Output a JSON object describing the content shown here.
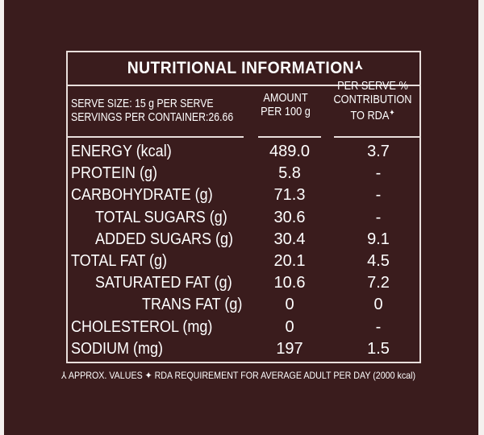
{
  "title": "NUTRITIONAL INFORMATION",
  "title_mark": "⅄",
  "header": {
    "serve_size": "SERVE SIZE: 15 g PER SERVE",
    "servings": "SERVINGS PER CONTAINER:26.66",
    "amount_line1": "AMOUNT",
    "amount_line2": "PER 100 g",
    "rda_line1": "PER SERVE %",
    "rda_line2": "CONTRIBUTION",
    "rda_line3": "TO RDA",
    "rda_mark": "✦"
  },
  "rows": [
    {
      "label": "ENERGY (kcal)",
      "amount": "489.0",
      "rda": "3.7"
    },
    {
      "label": "PROTEIN (g)",
      "amount": "5.8",
      "rda": "-"
    },
    {
      "label": "CARBOHYDRATE (g)",
      "amount": "71.3",
      "rda": "-"
    },
    {
      "label": "TOTAL SUGARS (g)",
      "amount": "30.6",
      "rda": "-"
    },
    {
      "label": "ADDED SUGARS (g)",
      "amount": "30.4",
      "rda": "9.1"
    },
    {
      "label": "TOTAL FAT (g)",
      "amount": "20.1",
      "rda": "4.5"
    },
    {
      "label": "SATURATED FAT (g)",
      "amount": "10.6",
      "rda": "7.2"
    },
    {
      "label": "TRANS FAT (g)",
      "amount": "0",
      "rda": "0"
    },
    {
      "label": "CHOLESTEROL (mg)",
      "amount": "0",
      "rda": "-"
    },
    {
      "label": "SODIUM (mg)",
      "amount": "197",
      "rda": "1.5"
    }
  ],
  "footnote": "⅄ APPROX. VALUES ✦ RDA REQUIREMENT FOR AVERAGE ADULT PER DAY (2000 kcal)",
  "colors": {
    "background": "#3a1c1d",
    "text": "#ffffff",
    "rule": "#e9dfdc"
  }
}
